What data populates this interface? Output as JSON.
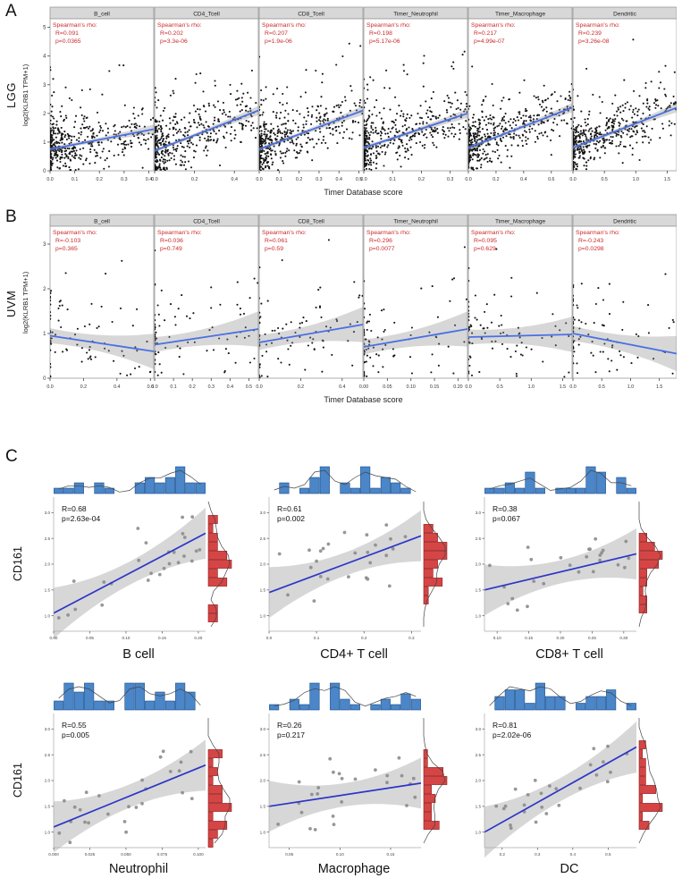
{
  "colors": {
    "header_bg": "#d8d8d8",
    "header_border": "#999999",
    "stat_text": "#cc2a2a",
    "reg_line": "#4a6fe3",
    "reg_line_dark": "#2c35c7",
    "point_black": "#141414",
    "point_gray": "#8c8c8c",
    "hist_blue_fill": "#4a86c8",
    "hist_blue_stroke": "#1d4e89",
    "hist_red_fill": "#d64545",
    "hist_red_stroke": "#8e1f1f",
    "ci_fill": "rgba(140,140,140,0.35)"
  },
  "chart_data": [
    {
      "type": "scatter",
      "panel_label": "A",
      "cohort": "LGG",
      "ylabel": "log2(KLRB1 TPM+1)",
      "xlabel": "Timer Database score",
      "stats_label": "Spearman's rho:",
      "ylim": [
        0,
        5.3
      ],
      "y_ticks": [
        "0",
        "1",
        "2",
        "3",
        "4",
        "5"
      ],
      "n_points": 480,
      "plots": [
        {
          "cell_type": "B_cell",
          "R": "0.091",
          "p": "0.0365",
          "xlim": [
            0,
            0.42
          ],
          "x_ticks": [
            "0.0",
            "0.1",
            "0.2",
            "0.3",
            "0.4"
          ],
          "trend": [
            0.75,
            1.45
          ]
        },
        {
          "cell_type": "CD4_Tcell",
          "R": "0.202",
          "p": "3.3e-06",
          "xlim": [
            0,
            0.52
          ],
          "x_ticks": [
            "0.0",
            "0.2",
            "0.4"
          ],
          "trend": [
            0.7,
            2.1
          ]
        },
        {
          "cell_type": "CD8_Tcell",
          "R": "0.207",
          "p": "1.9e-06",
          "xlim": [
            0,
            0.52
          ],
          "x_ticks": [
            "0.0",
            "0.1",
            "0.2",
            "0.3",
            "0.4",
            "0.5"
          ],
          "trend": [
            0.75,
            2.1
          ]
        },
        {
          "cell_type": "Timer_Neutrophil",
          "R": "0.198",
          "p": "5.17e-06",
          "xlim": [
            0,
            0.36
          ],
          "x_ticks": [
            "0.0",
            "0.1",
            "0.2",
            "0.3"
          ],
          "trend": [
            0.8,
            2.0
          ]
        },
        {
          "cell_type": "Timer_Macrophage",
          "R": "0.217",
          "p": "4.99e-07",
          "xlim": [
            0,
            0.75
          ],
          "x_ticks": [
            "0.0",
            "0.2",
            "0.4",
            "0.6"
          ],
          "trend": [
            0.8,
            2.2
          ]
        },
        {
          "cell_type": "Dendritic",
          "R": "0.239",
          "p": "3.26e-08",
          "xlim": [
            0,
            1.65
          ],
          "x_ticks": [
            "0.0",
            "0.5",
            "1.0",
            "1.5"
          ],
          "trend": [
            0.8,
            2.2
          ]
        }
      ]
    },
    {
      "type": "scatter",
      "panel_label": "B",
      "cohort": "UVM",
      "ylabel": "log2(KLRB1 TPM+1)",
      "xlabel": "Timer Database score",
      "stats_label": "Spearman's rho:",
      "ylim": [
        0,
        3.4
      ],
      "y_ticks": [
        "0",
        "1",
        "2",
        "3"
      ],
      "n_points": 85,
      "plots": [
        {
          "cell_type": "B_cell",
          "R": "-0.103",
          "p": "0.365",
          "xlim": [
            0,
            0.62
          ],
          "x_ticks": [
            "0.0",
            "0.2",
            "0.4",
            "0.6"
          ],
          "trend": [
            0.95,
            0.6
          ]
        },
        {
          "cell_type": "CD4_Tcell",
          "R": "0.036",
          "p": "0.749",
          "xlim": [
            0,
            0.55
          ],
          "x_ticks": [
            "0.0",
            "0.1",
            "0.2",
            "0.3",
            "0.4",
            "0.5"
          ],
          "trend": [
            0.75,
            1.1
          ]
        },
        {
          "cell_type": "CD8_Tcell",
          "R": "0.061",
          "p": "0.59",
          "xlim": [
            0,
            0.5
          ],
          "x_ticks": [
            "0.0",
            "0.2",
            "0.4"
          ],
          "trend": [
            0.8,
            1.2
          ]
        },
        {
          "cell_type": "Timer_Neutrophil",
          "R": "0.296",
          "p": "0.0077",
          "xlim": [
            0,
            0.22
          ],
          "x_ticks": [
            "0.00",
            "0.05",
            "0.10",
            "0.15",
            "0.20"
          ],
          "trend": [
            0.7,
            1.1
          ]
        },
        {
          "cell_type": "Timer_Macrophage",
          "R": "0.095",
          "p": "0.629",
          "xlim": [
            0,
            1.65
          ],
          "x_ticks": [
            "0.0",
            "0.5",
            "1.0",
            "1.5"
          ],
          "trend": [
            0.92,
            0.98
          ]
        },
        {
          "cell_type": "Dendritic",
          "R": "-0.243",
          "p": "0.0298",
          "xlim": [
            0,
            1.8
          ],
          "x_ticks": [
            "0.0",
            "0.5",
            "1.0",
            "1.5"
          ],
          "trend": [
            1.0,
            0.55
          ]
        }
      ]
    },
    {
      "type": "scatter-marginal",
      "panel_label": "C",
      "ylabel": "CD161",
      "ylim": [
        0.7,
        3.3
      ],
      "y_ticks": [
        "1.0",
        "1.5",
        "2.0",
        "2.5",
        "3.0"
      ],
      "n_points": 26,
      "plots": [
        {
          "cell_type": "B cell",
          "R": "0.68",
          "p": "2.63e-04",
          "xlim": [
            0,
            0.21
          ],
          "x_ticks": [
            "0.00",
            "0.05",
            "0.10",
            "0.15",
            "0.20"
          ],
          "trend": [
            1.05,
            2.6
          ]
        },
        {
          "cell_type": "CD4+ T cell",
          "R": "0.61",
          "p": "0.002",
          "xlim": [
            0,
            0.32
          ],
          "x_ticks": [
            "0.0",
            "0.1",
            "0.2",
            "0.3"
          ],
          "trend": [
            1.45,
            2.55
          ]
        },
        {
          "cell_type": "CD8+ T cell",
          "R": "0.38",
          "p": "0.067",
          "xlim": [
            0.08,
            0.32
          ],
          "x_ticks": [
            "0.10",
            "0.15",
            "0.20",
            "0.25",
            "0.30"
          ],
          "trend": [
            1.5,
            2.2
          ]
        },
        {
          "cell_type": "Neutrophil",
          "R": "0.55",
          "p": "0.005",
          "xlim": [
            0,
            0.105
          ],
          "x_ticks": [
            "0.000",
            "0.025",
            "0.050",
            "0.075",
            "0.100"
          ],
          "trend": [
            1.1,
            2.3
          ]
        },
        {
          "cell_type": "Macrophage",
          "R": "0.26",
          "p": "0.217",
          "xlim": [
            0.03,
            0.18
          ],
          "x_ticks": [
            "0.05",
            "0.10",
            "0.15"
          ],
          "trend": [
            1.5,
            1.95
          ]
        },
        {
          "cell_type": "DC",
          "R": "0.81",
          "p": "2.02e-06",
          "xlim": [
            0.15,
            0.58
          ],
          "x_ticks": [
            "0.2",
            "0.3",
            "0.4",
            "0.5"
          ],
          "trend": [
            1.0,
            2.65
          ]
        }
      ]
    }
  ]
}
